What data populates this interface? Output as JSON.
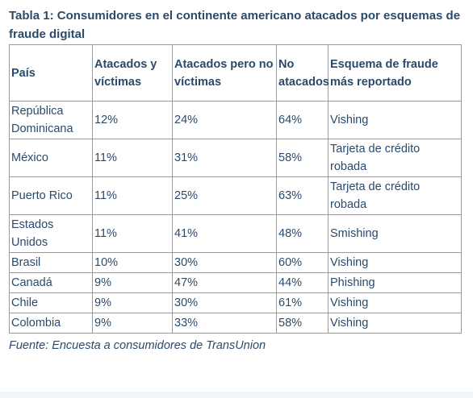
{
  "caption": "Tabla 1: Consumidores en el continente americano atacados por esquemas de fraude digital",
  "headers": [
    "País",
    "Atacados y víctimas",
    "Atacados pero no víctimas",
    "No atacados",
    "Esquema de fraude más reportado"
  ],
  "rows": [
    [
      "República Dominicana",
      "12%",
      "24%",
      "64%",
      "Vishing"
    ],
    [
      "México",
      "11%",
      "31%",
      "58%",
      "Tarjeta de crédito robada"
    ],
    [
      "Puerto Rico",
      "11%",
      "25%",
      "63%",
      "Tarjeta de crédito robada"
    ],
    [
      "Estados Unidos",
      "11%",
      "41%",
      "48%",
      "Smishing"
    ],
    [
      "Brasil",
      "10%",
      "30%",
      "60%",
      "Vishing"
    ],
    [
      "Canadá",
      "9%",
      "47%",
      "44%",
      "Phishing"
    ],
    [
      "Chile",
      "9%",
      "30%",
      "61%",
      "Vishing"
    ],
    [
      "Colombia",
      "9%",
      "33%",
      "58%",
      "Vishing"
    ]
  ],
  "source": "Fuente: Encuesta a consumidores de TransUnion"
}
